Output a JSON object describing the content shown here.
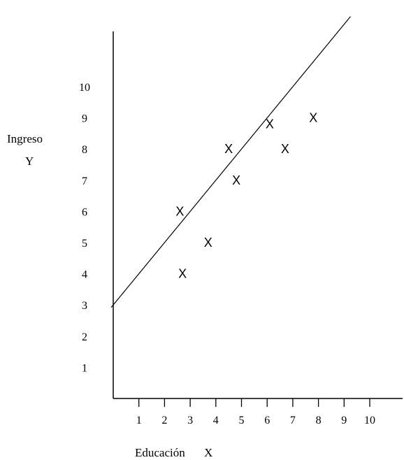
{
  "chart_data": {
    "type": "scatter",
    "title": "",
    "ylabel": "Ingreso",
    "ylabel_symbol": "Y",
    "xlabel": "Educación",
    "xlabel_symbol": "X",
    "xlim": [
      0,
      11.3
    ],
    "ylim": [
      0,
      12
    ],
    "x_ticks": [
      "1",
      "2",
      "3",
      "4",
      "5",
      "6",
      "7",
      "8",
      "9",
      "10"
    ],
    "y_ticks": [
      "1",
      "2",
      "3",
      "4",
      "5",
      "6",
      "7",
      "8",
      "9",
      "10"
    ],
    "marker": "X",
    "points": [
      {
        "x": 2.7,
        "y": 4
      },
      {
        "x": 2.6,
        "y": 6
      },
      {
        "x": 3.7,
        "y": 5
      },
      {
        "x": 4.5,
        "y": 8
      },
      {
        "x": 4.8,
        "y": 7
      },
      {
        "x": 6.1,
        "y": 8.8
      },
      {
        "x": 6.7,
        "y": 8
      },
      {
        "x": 7.8,
        "y": 9
      }
    ],
    "regression_line": {
      "intercept": 3,
      "slope": 1
    }
  }
}
